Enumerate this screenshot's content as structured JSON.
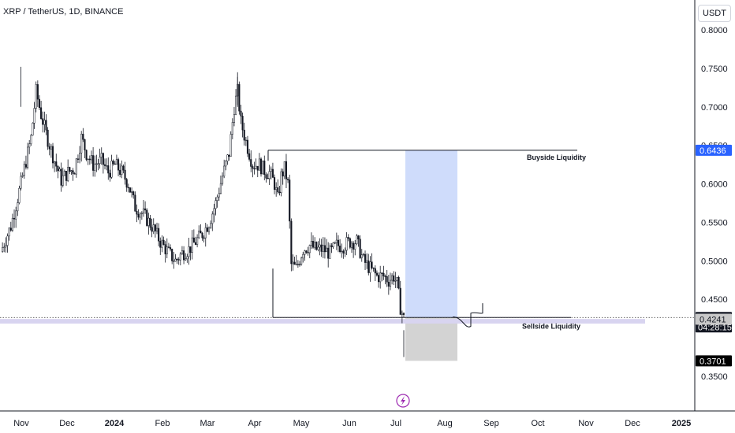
{
  "title": "XRP / TetherUS, 1D, BINANCE",
  "currency_button": "USDT",
  "colors": {
    "candle": "#131722",
    "zone_blue": "#cfdcfb",
    "zone_gray": "#d3d3d3",
    "band_purple": "#d8d4f0",
    "buyside_label_bg": "#2962ff",
    "axis_line": "#131722",
    "lightning": "#9c27b0"
  },
  "chart_data": {
    "type": "candlestick",
    "x_axis_ticks": [
      "Nov",
      "Dec",
      "2024",
      "Feb",
      "Mar",
      "Apr",
      "May",
      "Jun",
      "Jul",
      "Aug",
      "Sep",
      "Oct",
      "Nov",
      "Dec",
      "2025"
    ],
    "x_axis_bold_ticks": [
      "2024",
      "2025"
    ],
    "y_axis_ticks": [
      "0.8000",
      "0.7500",
      "0.7000",
      "0.6500",
      "0.6000",
      "0.5500",
      "0.5000",
      "0.4500",
      "0.3500"
    ],
    "ylim": [
      0.33,
      0.81
    ],
    "price_labels": [
      {
        "value": 0.6436,
        "text": "0.6436",
        "style": "blue"
      },
      {
        "value": 0.4264,
        "text": "0.4264",
        "countdown": "04:28:15",
        "style": "dark"
      },
      {
        "value": 0.4241,
        "text": "0.4241",
        "style": "gray"
      },
      {
        "value": 0.3701,
        "text": "0.3701",
        "style": "black"
      }
    ],
    "annotations": [
      {
        "text": "Buyside Liquidity",
        "price": 0.6436
      },
      {
        "text": "Sellside Liquidity",
        "price": 0.4264
      }
    ],
    "current_price": 0.4264,
    "sellside_band": [
      0.4185,
      0.4245
    ],
    "buyside_level": 0.6436,
    "sellside_level": 0.4264,
    "zone_blue": [
      0.4264,
      0.6436
    ],
    "zone_gray": [
      0.3701,
      0.4264
    ],
    "candles_summary": "XRP daily candles from late Oct 2023 to early Jul 2024; high near 0.75 in Nov 2023 and Mar 2024, drop to about 0.38 in early Jul 2024"
  }
}
